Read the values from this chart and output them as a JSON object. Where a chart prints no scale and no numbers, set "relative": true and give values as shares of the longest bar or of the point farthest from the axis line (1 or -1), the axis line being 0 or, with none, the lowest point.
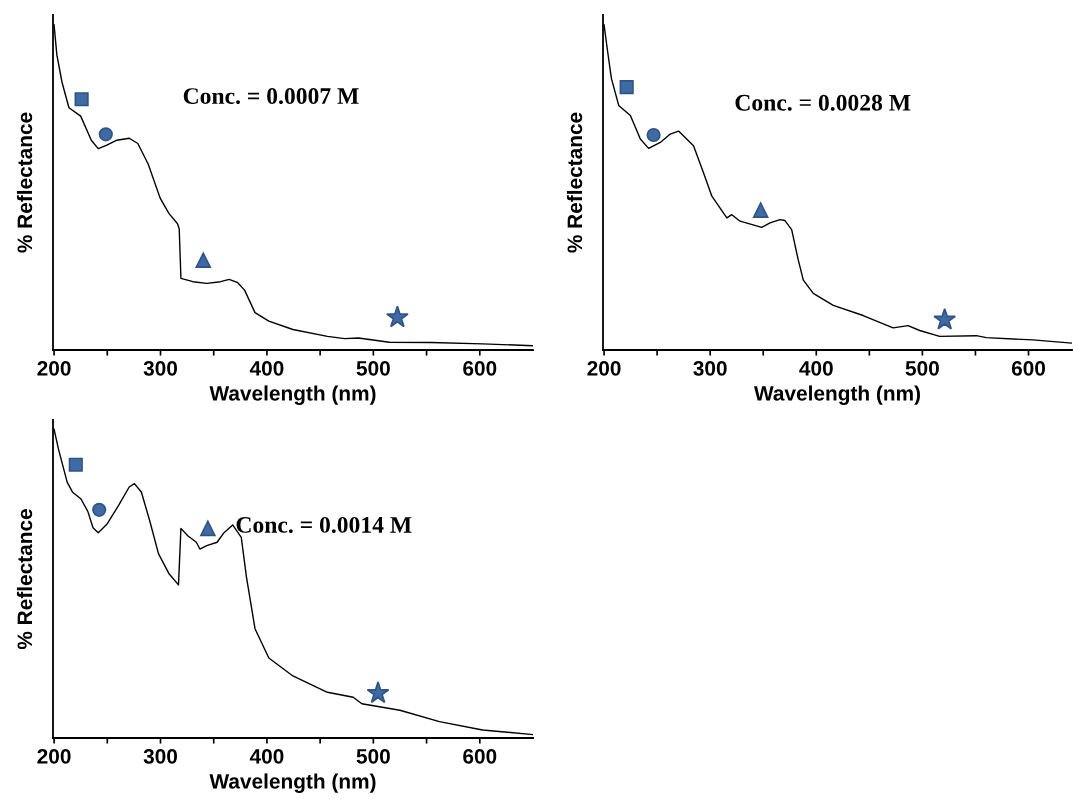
{
  "chart_data": [
    {
      "type": "line",
      "relative": true,
      "xlabel": "Wavelength (nm)",
      "ylabel": "% Reflectance",
      "annotations": [
        "Conc. = 0.0007 M"
      ],
      "xlim": [
        199,
        650
      ],
      "xticks": [
        200,
        {
          "value": 250,
          "label": null
        },
        300,
        {
          "value": 350,
          "label": null
        },
        400,
        {
          "value": 450,
          "label": null
        },
        500,
        {
          "value": 550,
          "label": null
        },
        600
      ],
      "tick_labels": "x",
      "grid": false,
      "legend": false,
      "series": [
        {
          "color": "#000000",
          "x": [
            200,
            202.6,
            207.4,
            214,
            225,
            235,
            241.5,
            249.6,
            259,
            270.6,
            278.7,
            288.4,
            299.7,
            307.9,
            316,
            317.6,
            319.2,
            330.5,
            343.5,
            356.4,
            364.5,
            372.6,
            379,
            388.8,
            401.8,
            424.4,
            456.8,
            473,
            486,
            515,
            554,
            602.6,
            650
          ],
          "values": [
            1.0,
            0.908,
            0.824,
            0.745,
            0.719,
            0.645,
            0.619,
            0.63,
            0.645,
            0.651,
            0.635,
            0.572,
            0.467,
            0.42,
            0.388,
            0.372,
            0.22,
            0.21,
            0.205,
            0.21,
            0.217,
            0.207,
            0.184,
            0.115,
            0.089,
            0.063,
            0.042,
            0.035,
            0.037,
            0.024,
            0.023,
            0.019,
            0.013
          ]
        },
        {
          "type": "scatter",
          "marker": "square",
          "color": "#3f6aa3",
          "x": [
            225.9
          ],
          "values": [
            0.771
          ]
        },
        {
          "type": "scatter",
          "marker": "circle",
          "color": "#3f6aa3",
          "x": [
            248.6
          ],
          "values": [
            0.663
          ]
        },
        {
          "type": "scatter",
          "marker": "triangle",
          "color": "#3f6aa3",
          "x": [
            340.2
          ],
          "values": [
            0.276
          ]
        },
        {
          "type": "scatter",
          "marker": "star",
          "color": "#3f6aa3",
          "x": [
            522.6
          ],
          "values": [
            0.1
          ]
        }
      ]
    },
    {
      "type": "line",
      "relative": true,
      "xlabel": "Wavelength (nm)",
      "ylabel": "% Reflectance",
      "annotations": [
        "Conc. = 0.0028 M"
      ],
      "xlim": [
        199,
        641
      ],
      "xticks": [
        200,
        {
          "value": 250,
          "label": null
        },
        300,
        {
          "value": 350,
          "label": null
        },
        400,
        {
          "value": 450,
          "label": null
        },
        500,
        {
          "value": 550,
          "label": null
        },
        600
      ],
      "tick_labels": "x",
      "grid": false,
      "legend": false,
      "series": [
        {
          "color": "#000000",
          "x": [
            200,
            203.4,
            206.9,
            213.8,
            224.8,
            234.2,
            242,
            253,
            262.4,
            270.2,
            284.3,
            293.7,
            301.6,
            315.7,
            320.4,
            328.2,
            348.6,
            356.4,
            365.8,
            370.5,
            376.8,
            383,
            387.8,
            397.2,
            416,
            444.2,
            472.4,
            486.5,
            497.5,
            516.3,
            550.8,
            560.2,
            604,
            641
          ],
          "values": [
            1.0,
            0.917,
            0.835,
            0.752,
            0.721,
            0.649,
            0.62,
            0.638,
            0.664,
            0.673,
            0.628,
            0.545,
            0.473,
            0.406,
            0.416,
            0.396,
            0.377,
            0.391,
            0.401,
            0.398,
            0.37,
            0.277,
            0.215,
            0.174,
            0.137,
            0.106,
            0.068,
            0.075,
            0.06,
            0.042,
            0.044,
            0.038,
            0.031,
            0.021
          ]
        },
        {
          "type": "scatter",
          "marker": "square",
          "color": "#3f6aa3",
          "x": [
            221.3
          ],
          "values": [
            0.808
          ]
        },
        {
          "type": "scatter",
          "marker": "circle",
          "color": "#3f6aa3",
          "x": [
            246.7
          ],
          "values": [
            0.661
          ]
        },
        {
          "type": "scatter",
          "marker": "triangle",
          "color": "#3f6aa3",
          "x": [
            347.6
          ],
          "values": [
            0.43
          ]
        },
        {
          "type": "scatter",
          "marker": "star",
          "color": "#3f6aa3",
          "x": [
            521
          ],
          "values": [
            0.093
          ]
        }
      ]
    },
    {
      "type": "line",
      "relative": true,
      "xlabel": "Wavelength (nm)",
      "ylabel": "% Reflectance",
      "annotations": [
        "Conc. = 0.0014 M"
      ],
      "xlim": [
        199,
        650
      ],
      "xticks": [
        200,
        {
          "value": 250,
          "label": null
        },
        300,
        {
          "value": 350,
          "label": null
        },
        400,
        {
          "value": 450,
          "label": null
        },
        500,
        {
          "value": 550,
          "label": null
        },
        600
      ],
      "tick_labels": "x",
      "grid": false,
      "legend": false,
      "series": [
        {
          "color": "#000000",
          "x": [
            200,
            204.2,
            209.1,
            212.3,
            217.2,
            225.3,
            231.7,
            236.6,
            241.5,
            249.6,
            260.9,
            270.6,
            275.5,
            282,
            290,
            298.1,
            307.8,
            316.9,
            319.2,
            325.6,
            333.7,
            337,
            343.5,
            353.2,
            359.7,
            367.8,
            375.9,
            380.7,
            388.8,
            401.8,
            424.4,
            456.8,
            481.1,
            489.2,
            524.9,
            562.1,
            602.6,
            650
          ],
          "values": [
            1.0,
            0.935,
            0.871,
            0.829,
            0.797,
            0.774,
            0.734,
            0.681,
            0.665,
            0.692,
            0.755,
            0.813,
            0.824,
            0.797,
            0.702,
            0.597,
            0.533,
            0.496,
            0.679,
            0.655,
            0.634,
            0.612,
            0.623,
            0.634,
            0.665,
            0.69,
            0.65,
            0.523,
            0.354,
            0.259,
            0.201,
            0.148,
            0.132,
            0.111,
            0.09,
            0.053,
            0.026,
            0.011
          ]
        },
        {
          "type": "scatter",
          "marker": "square",
          "color": "#3f6aa3",
          "x": [
            220.4
          ],
          "values": [
            0.885
          ]
        },
        {
          "type": "scatter",
          "marker": "circle",
          "color": "#3f6aa3",
          "x": [
            242.4
          ],
          "values": [
            0.739
          ]
        },
        {
          "type": "scatter",
          "marker": "triangle",
          "color": "#3f6aa3",
          "x": [
            344.5
          ],
          "values": [
            0.679
          ]
        },
        {
          "type": "scatter",
          "marker": "star",
          "color": "#3f6aa3",
          "x": [
            504.4
          ],
          "values": [
            0.145
          ]
        }
      ]
    }
  ]
}
